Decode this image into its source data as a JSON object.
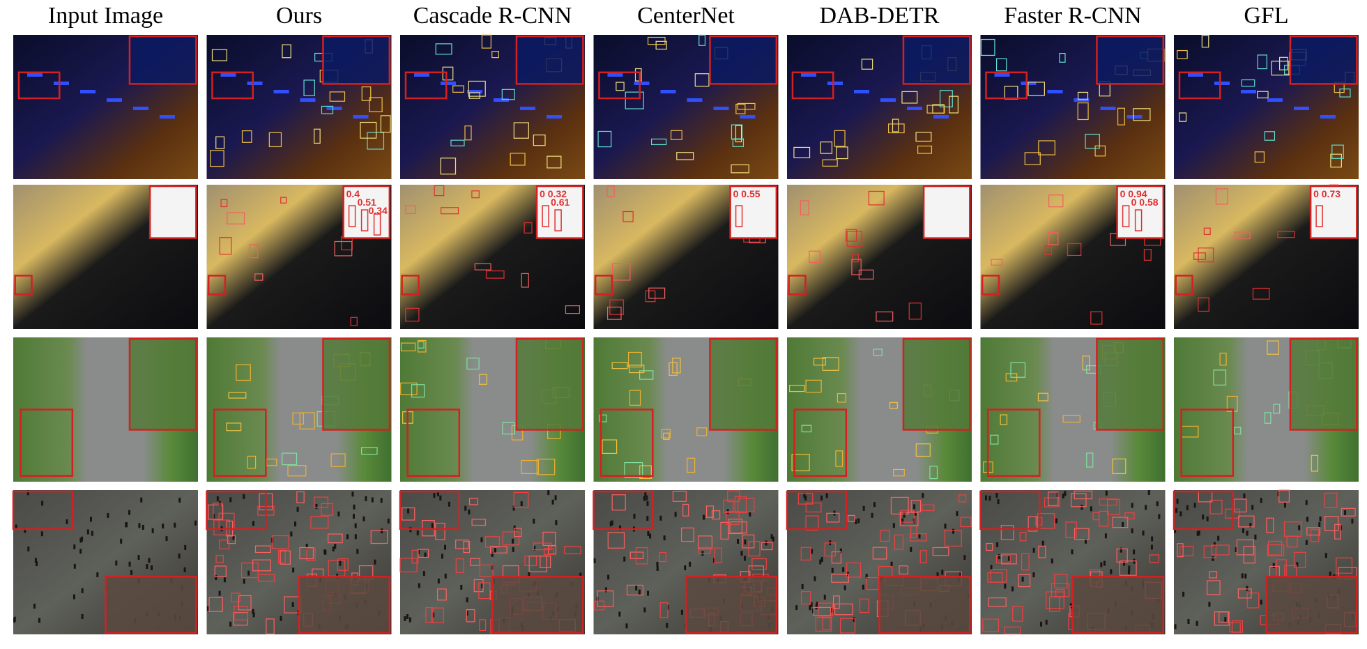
{
  "columns": [
    "Input Image",
    "Ours",
    "Cascade R-CNN",
    "CenterNet",
    "DAB-DETR",
    "Faster R-CNN",
    "GFL"
  ],
  "row2_inset_scores": [
    null,
    [
      "0.4",
      "0.51",
      "0.34"
    ],
    [
      "0 0.32",
      "0.61"
    ],
    [
      "0 0.55"
    ],
    [],
    [
      "0 0.94",
      "0 0.58"
    ],
    [
      "0 0.73"
    ]
  ]
}
